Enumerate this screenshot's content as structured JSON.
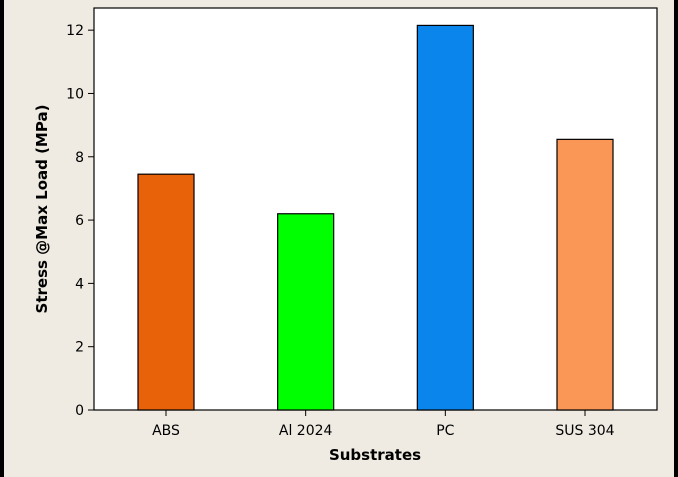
{
  "chart_data": {
    "type": "bar",
    "title": "",
    "xlabel": "Substrates",
    "ylabel": "Stress @Max Load (MPa)",
    "categories": [
      "ABS",
      "Al 2024",
      "PC",
      "SUS 304"
    ],
    "values": [
      7.45,
      6.2,
      12.15,
      8.55
    ],
    "colors": [
      "#e8620a",
      "#00ff00",
      "#0a85ec",
      "#fa9656"
    ],
    "yticks": [
      0,
      2,
      4,
      6,
      8,
      10,
      12
    ],
    "ylim": [
      0,
      12.7
    ],
    "grid": false,
    "legend": "none"
  }
}
